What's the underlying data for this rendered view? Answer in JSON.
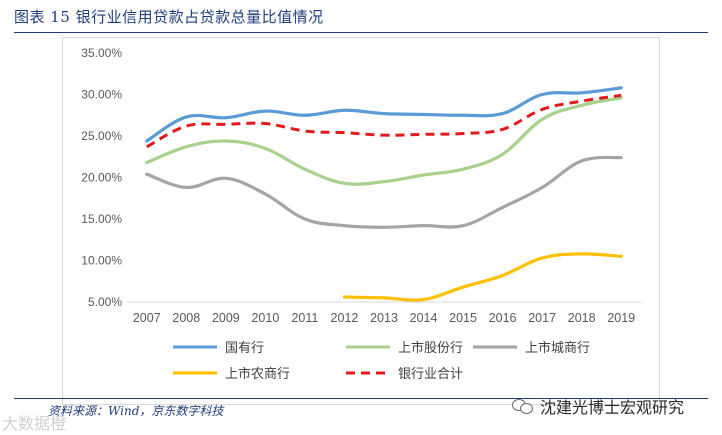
{
  "figure": {
    "title": "图表 15 银行业信用贷款占贷款总量比值情况",
    "source": "资料来源：Wind，京东数字科技",
    "brand": "沈建光博士宏观研究",
    "watermark": "大数据橙"
  },
  "chart_data": {
    "type": "line",
    "title": "",
    "xlabel": "",
    "ylabel": "",
    "categories": [
      "2007",
      "2008",
      "2009",
      "2010",
      "2011",
      "2012",
      "2013",
      "2014",
      "2015",
      "2016",
      "2017",
      "2018",
      "2019"
    ],
    "ylim": [
      0.05,
      0.35
    ],
    "yticks": [
      "5.00%",
      "10.00%",
      "15.00%",
      "20.00%",
      "25.00%",
      "30.00%",
      "35.00%"
    ],
    "legend_position": "bottom",
    "series": [
      {
        "name": "国有行",
        "color": "#5b9bd5",
        "dash": "solid",
        "values": [
          24.4,
          27.3,
          27.2,
          28.0,
          27.5,
          28.1,
          27.7,
          27.6,
          27.5,
          27.7,
          30.0,
          30.2,
          30.8
        ]
      },
      {
        "name": "上市股份行",
        "color": "#a9d18e",
        "dash": "solid",
        "values": [
          21.8,
          23.7,
          24.4,
          23.5,
          21.0,
          19.3,
          19.5,
          20.3,
          21.0,
          22.8,
          27.0,
          28.7,
          29.6
        ]
      },
      {
        "name": "上市城商行",
        "color": "#a5a5a5",
        "dash": "solid",
        "values": [
          20.4,
          18.8,
          19.9,
          18.0,
          15.0,
          14.2,
          14.0,
          14.2,
          14.2,
          16.4,
          18.8,
          22.0,
          22.4
        ]
      },
      {
        "name": "上市农商行",
        "color": "#ffc000",
        "dash": "solid",
        "values": [
          null,
          null,
          null,
          null,
          null,
          5.6,
          5.5,
          5.3,
          6.8,
          8.2,
          10.3,
          10.8,
          10.5
        ]
      },
      {
        "name": "银行业合计",
        "color": "#e31a1c",
        "dash": "dashed",
        "values": [
          23.7,
          26.2,
          26.4,
          26.5,
          25.6,
          25.4,
          25.1,
          25.2,
          25.3,
          25.8,
          28.2,
          29.2,
          29.9
        ]
      }
    ]
  }
}
